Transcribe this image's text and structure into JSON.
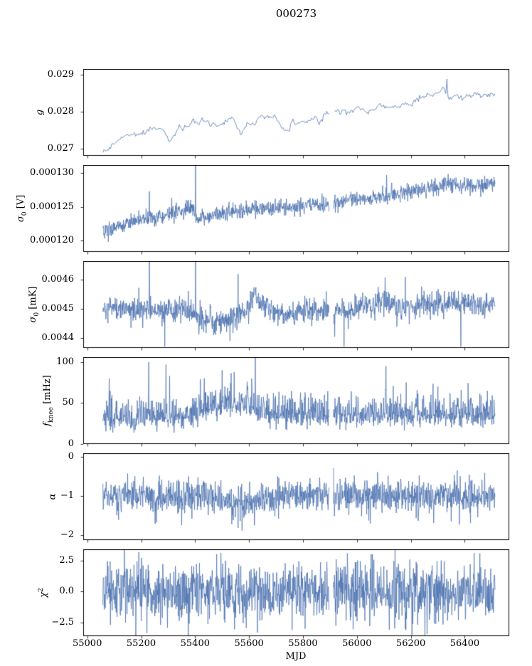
{
  "chart_data": {
    "type": "line",
    "title": "000273",
    "xlabel": "MJD",
    "xlim": [
      54985,
      56565
    ],
    "xticks": [
      55000,
      55200,
      55400,
      55600,
      55800,
      56000,
      56200,
      56400
    ],
    "x_data_range": [
      55058,
      56512
    ],
    "gaps": [
      [
        55897,
        55913
      ]
    ],
    "line_color": "#4c72b0",
    "axis_color": "#000000",
    "panels": [
      {
        "name": "g",
        "ylabel": [
          {
            "t": "g",
            "i": 1
          }
        ],
        "ylim": [
          0.0268,
          0.02915
        ],
        "yticks": [
          {
            "v": 0.027,
            "l": "0.027"
          },
          {
            "v": 0.028,
            "l": "0.028"
          },
          {
            "v": 0.029,
            "l": "0.029"
          }
        ],
        "n": 360,
        "noise": 5e-05,
        "smooth": true,
        "trend": [
          [
            55060,
            0.0269
          ],
          [
            55075,
            0.02695
          ],
          [
            55090,
            0.0271
          ],
          [
            55120,
            0.0272
          ],
          [
            55160,
            0.02733
          ],
          [
            55200,
            0.02745
          ],
          [
            55240,
            0.0275
          ],
          [
            55280,
            0.02755
          ],
          [
            55300,
            0.02742
          ],
          [
            55310,
            0.02728
          ],
          [
            55320,
            0.02745
          ],
          [
            55350,
            0.0276
          ],
          [
            55390,
            0.02765
          ],
          [
            55420,
            0.0277
          ],
          [
            55450,
            0.02765
          ],
          [
            55480,
            0.02768
          ],
          [
            55540,
            0.02772
          ],
          [
            55560,
            0.02745
          ],
          [
            55575,
            0.02738
          ],
          [
            55590,
            0.02765
          ],
          [
            55640,
            0.0278
          ],
          [
            55700,
            0.02778
          ],
          [
            55730,
            0.02748
          ],
          [
            55745,
            0.0274
          ],
          [
            55760,
            0.0277
          ],
          [
            55800,
            0.02778
          ],
          [
            55840,
            0.02785
          ],
          [
            55860,
            0.0277
          ],
          [
            55880,
            0.02795
          ],
          [
            55920,
            0.028
          ],
          [
            55960,
            0.02802
          ],
          [
            56000,
            0.02808
          ],
          [
            56040,
            0.02805
          ],
          [
            56080,
            0.02812
          ],
          [
            56120,
            0.02818
          ],
          [
            56160,
            0.02822
          ],
          [
            56200,
            0.02832
          ],
          [
            56240,
            0.02838
          ],
          [
            56280,
            0.02842
          ],
          [
            56320,
            0.02852
          ],
          [
            56340,
            0.02838
          ],
          [
            56360,
            0.02848
          ],
          [
            56400,
            0.02842
          ],
          [
            56440,
            0.02846
          ],
          [
            56480,
            0.02844
          ],
          [
            56510,
            0.0285
          ]
        ],
        "spikes": [
          [
            56332,
            0.02888
          ]
        ]
      },
      {
        "name": "sigma0-v",
        "ylabel": [
          {
            "t": "σ",
            "i": 1
          },
          {
            "t": "0",
            "sub": 1
          },
          {
            "t": " [V]"
          }
        ],
        "ylim": [
          0.0001183,
          0.0001312
        ],
        "yticks": [
          {
            "v": 0.00012,
            "l": "0.000120"
          },
          {
            "v": 0.000125,
            "l": "0.000125"
          },
          {
            "v": 0.00013,
            "l": "0.000130"
          }
        ],
        "n": 1300,
        "noise": 6e-07,
        "trend": [
          [
            55060,
            0.0001212
          ],
          [
            55080,
            0.0001215
          ],
          [
            55120,
            0.0001222
          ],
          [
            55160,
            0.0001227
          ],
          [
            55200,
            0.0001231
          ],
          [
            55240,
            0.0001234
          ],
          [
            55280,
            0.0001236
          ],
          [
            55320,
            0.000124
          ],
          [
            55360,
            0.0001245
          ],
          [
            55395,
            0.000125
          ],
          [
            55405,
            0.0001231
          ],
          [
            55440,
            0.0001234
          ],
          [
            55480,
            0.0001238
          ],
          [
            55520,
            0.000124
          ],
          [
            55560,
            0.0001242
          ],
          [
            55600,
            0.0001244
          ],
          [
            55640,
            0.0001246
          ],
          [
            55680,
            0.0001247
          ],
          [
            55720,
            0.0001248
          ],
          [
            55760,
            0.0001249
          ],
          [
            55800,
            0.000125
          ],
          [
            55840,
            0.0001252
          ],
          [
            55880,
            0.0001254
          ],
          [
            55920,
            0.0001255
          ],
          [
            55960,
            0.0001258
          ],
          [
            56000,
            0.0001261
          ],
          [
            56040,
            0.0001263
          ],
          [
            56080,
            0.0001264
          ],
          [
            56120,
            0.0001266
          ],
          [
            56160,
            0.0001269
          ],
          [
            56200,
            0.0001272
          ],
          [
            56240,
            0.0001276
          ],
          [
            56280,
            0.000128
          ],
          [
            56320,
            0.0001282
          ],
          [
            56360,
            0.0001284
          ],
          [
            56400,
            0.0001283
          ],
          [
            56440,
            0.0001282
          ],
          [
            56480,
            0.0001284
          ],
          [
            56510,
            0.0001285
          ]
        ],
        "spikes": [
          [
            55078,
            0.0001198
          ],
          [
            55230,
            0.0001273
          ],
          [
            55402,
            0.0001315
          ],
          [
            55900,
            0.0001315
          ],
          [
            56110,
            0.0001297
          ]
        ]
      },
      {
        "name": "sigma0-mk",
        "ylabel": [
          {
            "t": "σ",
            "i": 1
          },
          {
            "t": "0",
            "sub": 1
          },
          {
            "t": " [mK]"
          }
        ],
        "ylim": [
          0.004365,
          0.004665
        ],
        "yticks": [
          {
            "v": 0.0044,
            "l": "0.0044"
          },
          {
            "v": 0.0045,
            "l": "0.0045"
          },
          {
            "v": 0.0046,
            "l": "0.0046"
          }
        ],
        "n": 1300,
        "noise": 2.2e-05,
        "trend": [
          [
            55060,
            0.0045
          ],
          [
            55200,
            0.0045
          ],
          [
            55300,
            0.00449
          ],
          [
            55360,
            0.0045
          ],
          [
            55400,
            0.00448
          ],
          [
            55440,
            0.00446
          ],
          [
            55500,
            0.00446
          ],
          [
            55540,
            0.00447
          ],
          [
            55600,
            0.0045
          ],
          [
            55620,
            0.00455
          ],
          [
            55640,
            0.00452
          ],
          [
            55680,
            0.00449
          ],
          [
            55740,
            0.00448
          ],
          [
            55800,
            0.00449
          ],
          [
            55900,
            0.0045
          ],
          [
            55960,
            0.00449
          ],
          [
            56000,
            0.0045
          ],
          [
            56060,
            0.00452
          ],
          [
            56100,
            0.00453
          ],
          [
            56160,
            0.0045
          ],
          [
            56200,
            0.00451
          ],
          [
            56260,
            0.00452
          ],
          [
            56320,
            0.00451
          ],
          [
            56360,
            0.00453
          ],
          [
            56400,
            0.00452
          ],
          [
            56460,
            0.00451
          ],
          [
            56510,
            0.00452
          ]
        ],
        "spikes": [
          [
            55230,
            0.00469
          ],
          [
            55288,
            0.00437
          ],
          [
            55402,
            0.00469
          ],
          [
            55560,
            0.00462
          ],
          [
            55903,
            0.00469
          ],
          [
            55952,
            0.00437
          ],
          [
            56180,
            0.00461
          ],
          [
            56385,
            0.00437
          ]
        ]
      },
      {
        "name": "fknee",
        "ylabel": [
          {
            "t": "f",
            "i": 1
          },
          {
            "t": "knee",
            "sub": 1
          },
          {
            "t": " [mHz]"
          }
        ],
        "ylim": [
          0,
          106
        ],
        "yticks": [
          {
            "v": 0,
            "l": "0"
          },
          {
            "v": 50,
            "l": "50"
          },
          {
            "v": 100,
            "l": "100"
          }
        ],
        "n": 1300,
        "noise": 7,
        "asym": 1.9,
        "floor": 14,
        "trend": [
          [
            55060,
            32
          ],
          [
            55150,
            32
          ],
          [
            55250,
            33
          ],
          [
            55350,
            34
          ],
          [
            55430,
            40
          ],
          [
            55480,
            47
          ],
          [
            55530,
            50
          ],
          [
            55580,
            48
          ],
          [
            55630,
            42
          ],
          [
            55680,
            37
          ],
          [
            55750,
            34
          ],
          [
            55850,
            34
          ],
          [
            55950,
            35
          ],
          [
            56050,
            36
          ],
          [
            56150,
            36
          ],
          [
            56250,
            37
          ],
          [
            56350,
            36
          ],
          [
            56450,
            36
          ],
          [
            56510,
            36
          ]
        ],
        "spikes": [
          [
            55082,
            80
          ],
          [
            55228,
            100
          ],
          [
            55292,
            97
          ],
          [
            55305,
            83
          ],
          [
            55420,
            79
          ],
          [
            55500,
            90
          ],
          [
            55545,
            88
          ],
          [
            55610,
            80
          ],
          [
            55900,
            72
          ],
          [
            56108,
            95
          ],
          [
            56300,
            70
          ]
        ]
      },
      {
        "name": "alpha",
        "ylabel": [
          {
            "t": "α",
            "i": 1
          }
        ],
        "ylim": [
          -2.13,
          0.1
        ],
        "yticks": [
          {
            "v": 0,
            "l": "0"
          },
          {
            "v": -1,
            "l": "−1"
          },
          {
            "v": -2,
            "l": "−2"
          }
        ],
        "n": 1300,
        "noise": 0.21,
        "trend": [
          [
            55060,
            -1
          ],
          [
            55300,
            -1
          ],
          [
            55420,
            -0.95
          ],
          [
            55470,
            -1.05
          ],
          [
            55520,
            -1.15
          ],
          [
            55580,
            -1.15
          ],
          [
            55640,
            -1.1
          ],
          [
            55700,
            -1.05
          ],
          [
            55800,
            -1
          ],
          [
            55900,
            -1
          ],
          [
            56000,
            -1.02
          ],
          [
            56100,
            -1
          ],
          [
            56200,
            -1
          ],
          [
            56300,
            -1.02
          ],
          [
            56400,
            -1
          ],
          [
            56510,
            -1
          ]
        ],
        "spikes": [
          [
            55150,
            -0.42
          ],
          [
            55350,
            -1.75
          ],
          [
            55560,
            -1.82
          ],
          [
            55620,
            -1.75
          ],
          [
            56050,
            -1.7
          ],
          [
            56350,
            -1.65
          ]
        ]
      },
      {
        "name": "chi2",
        "ylabel": [
          {
            "t": "χ",
            "i": 1
          },
          {
            "t": "2",
            "sup": 1
          }
        ],
        "ylim": [
          -3.6,
          3.4
        ],
        "yticks": [
          {
            "v": 2.5,
            "l": "2.5"
          },
          {
            "v": 0,
            "l": "0.0"
          },
          {
            "v": -2.5,
            "l": "−2.5"
          }
        ],
        "n": 1300,
        "noise": 1.15,
        "trend": [
          [
            55060,
            0
          ],
          [
            56510,
            0
          ]
        ],
        "spikes": [
          [
            55480,
            3.0
          ],
          [
            55760,
            -3.1
          ],
          [
            55910,
            2.9
          ],
          [
            56180,
            -3.0
          ]
        ]
      }
    ]
  }
}
